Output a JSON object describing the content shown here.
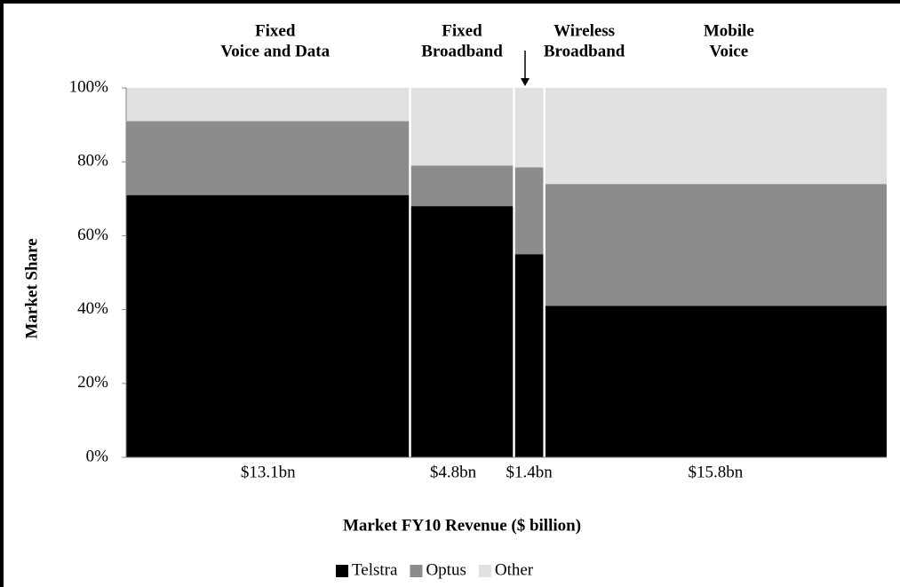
{
  "chart_data": {
    "type": "marimekko",
    "categories": [
      [
        "Fixed",
        "Voice and Data"
      ],
      [
        "Fixed",
        "Broadband"
      ],
      [
        "Wireless",
        "Broadband"
      ],
      [
        "Mobile",
        "Voice"
      ]
    ],
    "widths": [
      13.1,
      4.8,
      1.4,
      15.8
    ],
    "width_labels": [
      "$13.1bn",
      "$4.8bn",
      "$1.4bn",
      "$15.8bn"
    ],
    "series": [
      {
        "name": "Telstra",
        "color": "#000000",
        "values": [
          71,
          68,
          55,
          41
        ]
      },
      {
        "name": "Optus",
        "color": "#8c8c8c",
        "values": [
          20,
          11,
          23.5,
          33
        ]
      },
      {
        "name": "Other",
        "color": "#e0e0e2",
        "values": [
          9,
          21,
          21.5,
          26
        ]
      }
    ],
    "ylim": [
      0,
      100
    ],
    "yticks": [
      {
        "value": 0,
        "label": "0%"
      },
      {
        "value": 20,
        "label": "20%"
      },
      {
        "value": 40,
        "label": "40%"
      },
      {
        "value": 60,
        "label": "60%"
      },
      {
        "value": 80,
        "label": "80%"
      },
      {
        "value": 100,
        "label": "100%"
      }
    ],
    "ylabel": "Market Share",
    "xlabel": "Market FY10 Revenue ($ billion)",
    "legend": "bottom"
  }
}
